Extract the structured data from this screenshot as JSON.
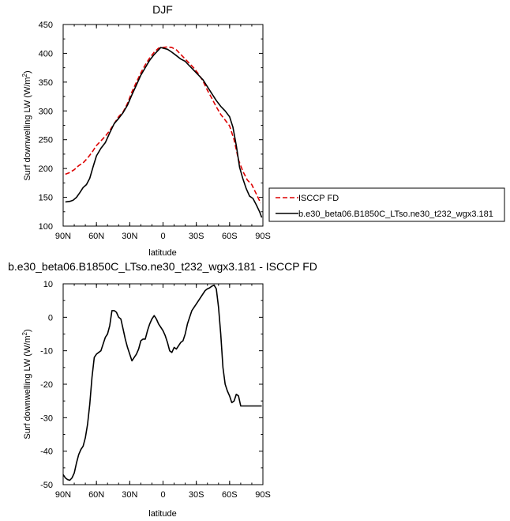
{
  "chart_data": [
    {
      "type": "line",
      "title": "DJF",
      "xlabel": "latitude",
      "ylabel_main": "Surf downwelling LW (W/m",
      "ylabel_sup": "2",
      "ylabel_close": ")",
      "xlim": [
        -90,
        90
      ],
      "ylim": [
        100,
        450
      ],
      "xticks": [
        -90,
        -60,
        -30,
        0,
        30,
        60,
        90
      ],
      "xtick_labels": [
        "90N",
        "60N",
        "30N",
        "0",
        "30S",
        "60S",
        "90S"
      ],
      "yticks": [
        100,
        150,
        200,
        250,
        300,
        350,
        400,
        450
      ],
      "ytick_labels": [
        "100",
        "150",
        "200",
        "250",
        "300",
        "350",
        "400",
        "450"
      ],
      "legend_position": "right",
      "series": [
        {
          "name": "ISCCP FD",
          "color": "#dd0000",
          "dash": "dashed",
          "x": [
            -88,
            -84,
            -80,
            -76,
            -72,
            -68,
            -64,
            -60,
            -56,
            -52,
            -48,
            -44,
            -40,
            -36,
            -32,
            -28,
            -24,
            -20,
            -16,
            -12,
            -8,
            -4,
            0,
            4,
            8,
            12,
            16,
            20,
            24,
            28,
            32,
            36,
            40,
            44,
            48,
            52,
            56,
            60,
            64,
            68,
            72,
            76,
            80,
            84,
            88
          ],
          "y": [
            190,
            193,
            198,
            205,
            210,
            218,
            228,
            240,
            248,
            256,
            266,
            278,
            290,
            298,
            313,
            333,
            350,
            366,
            380,
            392,
            402,
            409,
            410,
            411,
            410,
            406,
            398,
            390,
            382,
            374,
            364,
            352,
            336,
            322,
            307,
            294,
            284,
            274,
            250,
            215,
            195,
            180,
            172,
            156,
            140
          ]
        },
        {
          "name": "b.e30_beta06.B1850C_LTso.ne30_t232_wgx3.181",
          "color": "#000000",
          "dash": "solid",
          "x": [
            -88,
            -84,
            -81,
            -78,
            -75,
            -72,
            -69,
            -66,
            -63,
            -60,
            -56,
            -52,
            -48,
            -44,
            -40,
            -36,
            -32,
            -28,
            -24,
            -20,
            -16,
            -12,
            -8,
            -4,
            -2,
            0,
            4,
            8,
            12,
            16,
            20,
            24,
            28,
            32,
            36,
            40,
            44,
            48,
            52,
            56,
            60,
            63,
            66,
            69,
            72,
            75,
            78,
            81,
            84,
            87,
            89
          ],
          "y": [
            142,
            143,
            145,
            150,
            158,
            167,
            172,
            183,
            203,
            222,
            235,
            245,
            262,
            278,
            287,
            297,
            310,
            328,
            345,
            362,
            375,
            388,
            398,
            406,
            410,
            409,
            407,
            402,
            396,
            390,
            386,
            378,
            370,
            362,
            354,
            342,
            330,
            318,
            308,
            300,
            290,
            272,
            240,
            202,
            182,
            165,
            152,
            148,
            137,
            125,
            115
          ]
        }
      ]
    },
    {
      "type": "line",
      "title": "b.e30_beta06.B1850C_LTso.ne30_t232_wgx3.181 - ISCCP FD",
      "xlabel": "latitude",
      "ylabel_main": "Surf downwelling LW (W/m",
      "ylabel_sup": "2",
      "ylabel_close": ")",
      "xlim": [
        -90,
        90
      ],
      "ylim": [
        -50,
        10
      ],
      "xticks": [
        -90,
        -60,
        -30,
        0,
        30,
        60,
        90
      ],
      "xtick_labels": [
        "90N",
        "60N",
        "30N",
        "0",
        "30S",
        "60S",
        "90S"
      ],
      "yticks": [
        -50,
        -40,
        -30,
        -20,
        -10,
        0,
        10
      ],
      "ytick_labels": [
        "-50",
        "-40",
        "-30",
        "-20",
        "-10",
        "0",
        "10"
      ],
      "series": [
        {
          "color": "#000000",
          "dash": "solid",
          "x": [
            -90,
            -88,
            -86,
            -84,
            -82,
            -80,
            -78,
            -76,
            -74,
            -72,
            -70,
            -68,
            -66,
            -64,
            -62,
            -60,
            -58,
            -56,
            -54,
            -52,
            -50,
            -48,
            -46,
            -44,
            -42,
            -40,
            -38,
            -36,
            -34,
            -32,
            -30,
            -28,
            -26,
            -24,
            -22,
            -20,
            -18,
            -16,
            -14,
            -12,
            -10,
            -8,
            -6,
            -4,
            -2,
            0,
            2,
            4,
            6,
            8,
            10,
            12,
            14,
            16,
            18,
            20,
            22,
            24,
            26,
            28,
            30,
            32,
            34,
            36,
            38,
            40,
            42,
            44,
            46,
            48,
            50,
            52,
            54,
            56,
            58,
            60,
            62,
            64,
            66,
            68,
            70,
            72,
            74,
            76,
            78,
            80,
            82,
            84,
            86,
            88,
            89
          ],
          "y": [
            -47,
            -48,
            -48.5,
            -48.7,
            -48,
            -46.5,
            -43.5,
            -41,
            -39.5,
            -38.5,
            -36,
            -32,
            -26,
            -18,
            -12,
            -11,
            -10.5,
            -10,
            -8,
            -6,
            -5,
            -2.5,
            2,
            2,
            1.5,
            0,
            -0.5,
            -3.5,
            -6.5,
            -9,
            -11,
            -13,
            -12,
            -11,
            -9.5,
            -7,
            -6.5,
            -6.5,
            -4,
            -2,
            -0.5,
            0.5,
            -0.5,
            -2,
            -3,
            -4,
            -5.5,
            -7.5,
            -10,
            -10.5,
            -9,
            -9.5,
            -8.5,
            -7.5,
            -7,
            -5,
            -2,
            0,
            2,
            3,
            4,
            5,
            6,
            7,
            8,
            8.5,
            8.8,
            9.3,
            9.6,
            8.5,
            3,
            -5,
            -15,
            -20,
            -22,
            -23.5,
            -25.5,
            -25,
            -23,
            -23.5,
            -26.5,
            -26.5,
            -26.5,
            -26.5,
            -26.5,
            -26.5,
            -26.5,
            -26.5,
            -26.5,
            -26.5,
            -26.5
          ]
        }
      ]
    }
  ]
}
